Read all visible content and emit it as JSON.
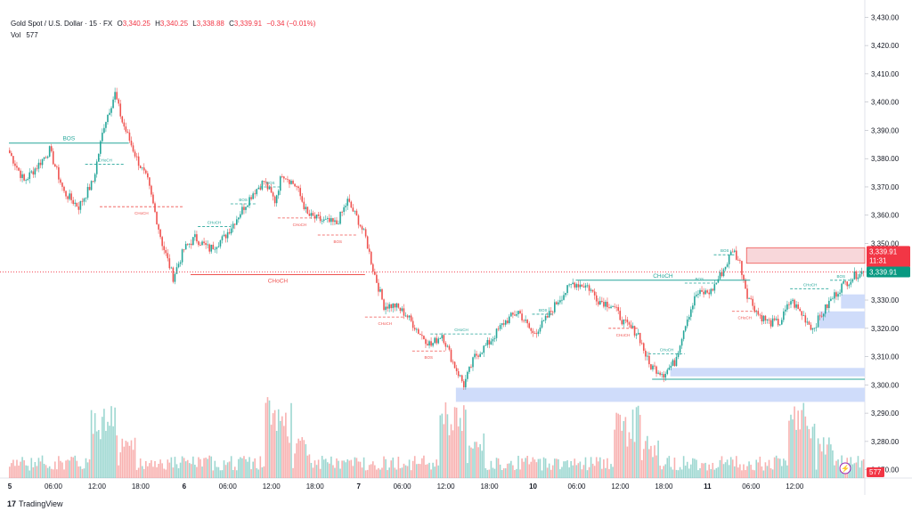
{
  "header": {
    "symbol": "Gold Spot / U.S. Dollar · 15 · FX",
    "open_label": "O",
    "open": "3,340.25",
    "high_label": "H",
    "high": "3,340.25",
    "low_label": "L",
    "low": "3,338.88",
    "close_label": "C",
    "close": "3,339.91",
    "change": "−0.34 (−0.01%)",
    "vol_label": "Vol",
    "vol": "577"
  },
  "footer": {
    "brand": "TradingView",
    "logo_glyph": "17"
  },
  "price_tags": {
    "price": "3,339.91",
    "countdown": "11:31",
    "current": "3,339.91",
    "volume": "577"
  },
  "colors": {
    "up": "#26a69a",
    "down": "#ef5350",
    "zone_supply": "#f8d7da",
    "zone_demand": "#cfdcfa",
    "price_tag": "#f23645",
    "current_tag": "#089981"
  },
  "chart_data": {
    "type": "candlestick",
    "y_axis": {
      "min": 3268,
      "max": 3432,
      "ticks": [
        3270,
        3280,
        3290,
        3300,
        3310,
        3320,
        3330,
        3340,
        3350,
        3360,
        3370,
        3380,
        3390,
        3400,
        3410,
        3420,
        3430
      ],
      "labels": [
        "3,270.00",
        "3,280.00",
        "3,290.00",
        "3,300.00",
        "3,310.00",
        "3,320.00",
        "3,330.00",
        "3,340.00",
        "3,350.00",
        "3,360.00",
        "3,370.00",
        "3,380.00",
        "3,390.00",
        "3,400.00",
        "3,410.00",
        "3,420.00",
        "3,430.00"
      ]
    },
    "x_axis": {
      "labels": [
        "5",
        "06:00",
        "12:00",
        "18:00",
        "6",
        "06:00",
        "12:00",
        "18:00",
        "7",
        "06:00",
        "12:00",
        "18:00",
        "10",
        "06:00",
        "12:00",
        "18:00",
        "11",
        "06:00",
        "12:00"
      ],
      "bars_per_label": 24
    },
    "price_keyframes": [
      [
        0,
        3382
      ],
      [
        8,
        3372
      ],
      [
        16,
        3378
      ],
      [
        22,
        3383
      ],
      [
        30,
        3368
      ],
      [
        38,
        3363
      ],
      [
        46,
        3372
      ],
      [
        52,
        3392
      ],
      [
        58,
        3403
      ],
      [
        62,
        3393
      ],
      [
        70,
        3380
      ],
      [
        76,
        3372
      ],
      [
        84,
        3350
      ],
      [
        90,
        3338
      ],
      [
        96,
        3348
      ],
      [
        102,
        3352
      ],
      [
        110,
        3348
      ],
      [
        118,
        3352
      ],
      [
        126,
        3360
      ],
      [
        134,
        3368
      ],
      [
        140,
        3372
      ],
      [
        146,
        3365
      ],
      [
        150,
        3375
      ],
      [
        158,
        3370
      ],
      [
        164,
        3360
      ],
      [
        172,
        3358
      ],
      [
        180,
        3357
      ],
      [
        186,
        3365
      ],
      [
        192,
        3358
      ],
      [
        196,
        3352
      ],
      [
        200,
        3341
      ],
      [
        206,
        3328
      ],
      [
        212,
        3328
      ],
      [
        218,
        3325
      ],
      [
        226,
        3318
      ],
      [
        232,
        3314
      ],
      [
        238,
        3318
      ],
      [
        244,
        3308
      ],
      [
        250,
        3300
      ],
      [
        256,
        3310
      ],
      [
        264,
        3315
      ],
      [
        272,
        3322
      ],
      [
        280,
        3326
      ],
      [
        288,
        3318
      ],
      [
        294,
        3322
      ],
      [
        302,
        3330
      ],
      [
        310,
        3336
      ],
      [
        318,
        3335
      ],
      [
        324,
        3330
      ],
      [
        332,
        3328
      ],
      [
        338,
        3322
      ],
      [
        346,
        3318
      ],
      [
        352,
        3307
      ],
      [
        360,
        3304
      ],
      [
        366,
        3308
      ],
      [
        372,
        3322
      ],
      [
        378,
        3332
      ],
      [
        386,
        3333
      ],
      [
        394,
        3342
      ],
      [
        398,
        3348
      ],
      [
        402,
        3343
      ],
      [
        406,
        3332
      ],
      [
        412,
        3325
      ],
      [
        418,
        3322
      ],
      [
        424,
        3322
      ],
      [
        430,
        3330
      ],
      [
        436,
        3325
      ],
      [
        442,
        3320
      ],
      [
        446,
        3324
      ],
      [
        452,
        3330
      ],
      [
        458,
        3335
      ],
      [
        464,
        3338
      ],
      [
        468,
        3340
      ],
      [
        470,
        3339.91
      ]
    ],
    "volume_max_hint": 100,
    "structure": [
      {
        "type": "bos",
        "label": "BOS",
        "color": "#26a69a",
        "price": 3385.5,
        "from_bar": 0,
        "to_bar": 66,
        "dashed": false
      },
      {
        "type": "choch",
        "label": "CHoCH",
        "color": "#26a69a",
        "price": 3378,
        "from_bar": 42,
        "to_bar": 64,
        "dashed": true
      },
      {
        "type": "choch",
        "label": "CHoCH",
        "color": "#ef5350",
        "price": 3363,
        "from_bar": 50,
        "to_bar": 96,
        "dashed": true
      },
      {
        "type": "choch",
        "label": "CHoCH",
        "color": "#ef5350",
        "price": 3339,
        "from_bar": 100,
        "to_bar": 196,
        "dashed": false
      },
      {
        "type": "choch",
        "label": "CHoCH",
        "color": "#26a69a",
        "price": 3356,
        "from_bar": 104,
        "to_bar": 122,
        "dashed": true
      },
      {
        "type": "bos",
        "label": "BOS",
        "color": "#26a69a",
        "price": 3364,
        "from_bar": 122,
        "to_bar": 136,
        "dashed": true
      },
      {
        "type": "bos",
        "label": "BOS",
        "color": "#26a69a",
        "price": 3370,
        "from_bar": 138,
        "to_bar": 150,
        "dashed": true
      },
      {
        "type": "choch",
        "label": "CHoCH",
        "color": "#ef5350",
        "price": 3359,
        "from_bar": 148,
        "to_bar": 172,
        "dashed": true
      },
      {
        "type": "bos",
        "label": "BOS",
        "color": "#ef5350",
        "price": 3353,
        "from_bar": 170,
        "to_bar": 192,
        "dashed": true
      },
      {
        "type": "choch",
        "label": "CHoCH",
        "color": "#ef5350",
        "price": 3324,
        "from_bar": 196,
        "to_bar": 218,
        "dashed": true
      },
      {
        "type": "choch",
        "label": "CHoCH",
        "color": "#26a69a",
        "price": 3318,
        "from_bar": 232,
        "to_bar": 266,
        "dashed": true
      },
      {
        "type": "bos",
        "label": "BOS",
        "color": "#ef5350",
        "price": 3312,
        "from_bar": 222,
        "to_bar": 240,
        "dashed": true
      },
      {
        "type": "bos",
        "label": "BOS",
        "color": "#26a69a",
        "price": 3325,
        "from_bar": 288,
        "to_bar": 300,
        "dashed": true
      },
      {
        "type": "choch",
        "label": "CHoCH",
        "color": "#26a69a",
        "price": 3337,
        "from_bar": 312,
        "to_bar": 408,
        "dashed": false
      },
      {
        "type": "choch",
        "label": "CHoCH",
        "color": "#ef5350",
        "price": 3320,
        "from_bar": 330,
        "to_bar": 346,
        "dashed": true
      },
      {
        "type": "choch",
        "label": "CHoCH",
        "color": "#26a69a",
        "price": 3311,
        "from_bar": 352,
        "to_bar": 372,
        "dashed": true
      },
      {
        "type": "bos",
        "label": "BOS",
        "color": "#26a69a",
        "price": 3336,
        "from_bar": 372,
        "to_bar": 388,
        "dashed": true
      },
      {
        "type": "bos",
        "label": "BOS",
        "color": "#26a69a",
        "price": 3346,
        "from_bar": 388,
        "to_bar": 400,
        "dashed": true
      },
      {
        "type": "choch",
        "label": "CHoCH",
        "color": "#ef5350",
        "price": 3326,
        "from_bar": 398,
        "to_bar": 412,
        "dashed": true
      },
      {
        "type": "choch",
        "label": "CHoCH",
        "color": "#26a69a",
        "price": 3334,
        "from_bar": 430,
        "to_bar": 452,
        "dashed": true
      },
      {
        "type": "bos",
        "label": "BOS",
        "color": "#26a69a",
        "price": 3337,
        "from_bar": 452,
        "to_bar": 464,
        "dashed": true
      }
    ],
    "zones": [
      {
        "kind": "supply",
        "from_bar": 406,
        "to_bar": 484,
        "top": 3348.5,
        "bottom": 3343
      },
      {
        "kind": "demand",
        "from_bar": 458,
        "to_bar": 484,
        "top": 3332,
        "bottom": 3327
      },
      {
        "kind": "demand",
        "from_bar": 446,
        "to_bar": 484,
        "top": 3326,
        "bottom": 3320
      },
      {
        "kind": "demand",
        "from_bar": 364,
        "to_bar": 484,
        "top": 3306,
        "bottom": 3303
      },
      {
        "kind": "demand",
        "from_bar": 246,
        "to_bar": 484,
        "top": 3299,
        "bottom": 3294
      }
    ],
    "lines": [
      {
        "color": "#26a69a",
        "price": 3302,
        "from_bar": 354,
        "to_bar": 484
      }
    ]
  }
}
